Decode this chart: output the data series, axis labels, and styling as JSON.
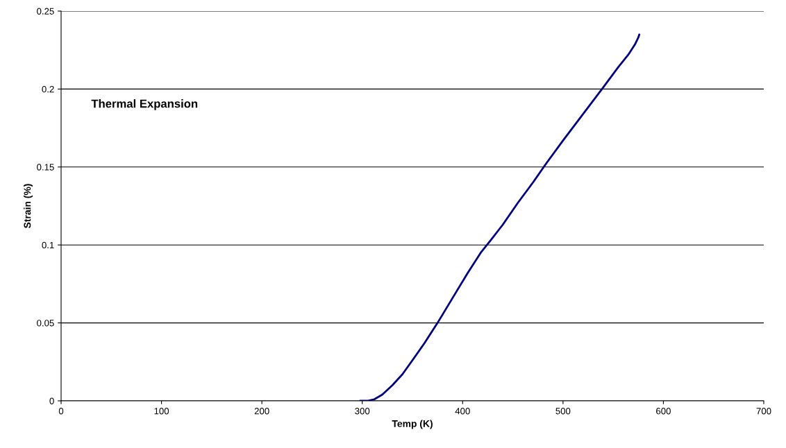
{
  "chart_data": {
    "type": "line",
    "title": "Thermal Expansion",
    "xlabel": "Temp (K)",
    "ylabel": "Strain (%)",
    "xlim": [
      0,
      700
    ],
    "xticks": [
      0,
      100,
      200,
      300,
      400,
      500,
      600,
      700
    ],
    "ylim": [
      0,
      0.25
    ],
    "yticks": [
      0,
      0.05,
      0.1,
      0.15,
      0.2,
      0.25
    ],
    "grid": "y",
    "legend": false,
    "series": [
      {
        "color": "#000080",
        "x": [
          298,
          305,
          312,
          320,
          330,
          340,
          350,
          362,
          375,
          390,
          405,
          418,
          428,
          440,
          455,
          470,
          483,
          500,
          520,
          540,
          555,
          565,
          572,
          575,
          576
        ],
        "values": [
          0,
          0,
          0.001,
          0.004,
          0.01,
          0.017,
          0.026,
          0.037,
          0.05,
          0.066,
          0.082,
          0.095,
          0.103,
          0.113,
          0.127,
          0.14,
          0.152,
          0.167,
          0.184,
          0.201,
          0.214,
          0.222,
          0.229,
          0.233,
          0.235
        ]
      }
    ]
  }
}
